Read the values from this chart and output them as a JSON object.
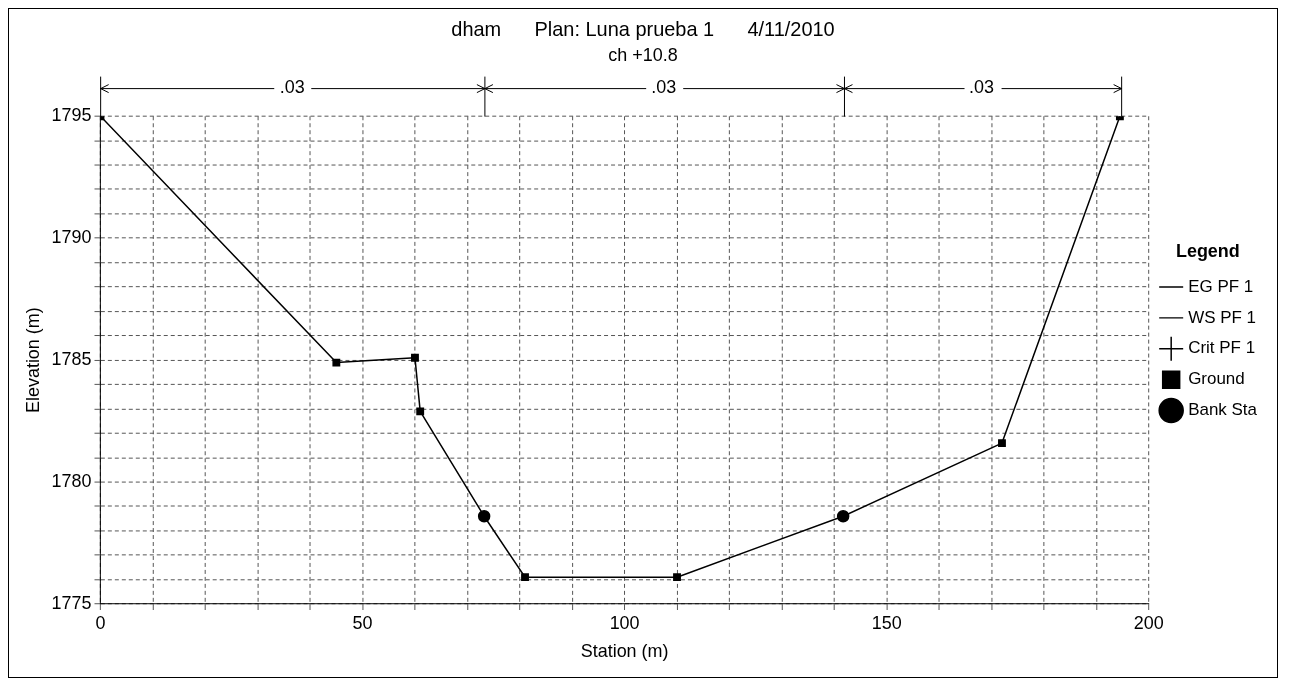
{
  "chart_data": {
    "type": "line",
    "title": "dham      Plan: Luna prueba 1      4/11/2010",
    "subtitle": "ch +10.8",
    "xlabel": "Station (m)",
    "ylabel": "Elevation (m)",
    "legend_title": "Legend",
    "legend": "right",
    "grid": true,
    "xlim": [
      0,
      200
    ],
    "xticks": [
      0,
      {
        "value": 10,
        "label": null
      },
      {
        "value": 20,
        "label": null
      },
      {
        "value": 30,
        "label": null
      },
      {
        "value": 40,
        "label": null
      },
      50,
      {
        "value": 60,
        "label": null
      },
      {
        "value": 70,
        "label": null
      },
      {
        "value": 80,
        "label": null
      },
      {
        "value": 90,
        "label": null
      },
      100,
      {
        "value": 110,
        "label": null
      },
      {
        "value": 120,
        "label": null
      },
      {
        "value": 130,
        "label": null
      },
      {
        "value": 140,
        "label": null
      },
      150,
      {
        "value": 160,
        "label": null
      },
      {
        "value": 170,
        "label": null
      },
      {
        "value": 180,
        "label": null
      },
      {
        "value": 190,
        "label": null
      },
      200
    ],
    "ylim": [
      1775,
      1795
    ],
    "yticks": [
      1775,
      {
        "value": 1776,
        "label": null
      },
      {
        "value": 1777,
        "label": null
      },
      {
        "value": 1778,
        "label": null
      },
      {
        "value": 1779,
        "label": null
      },
      1780,
      {
        "value": 1781,
        "label": null
      },
      {
        "value": 1782,
        "label": null
      },
      {
        "value": 1783,
        "label": null
      },
      {
        "value": 1784,
        "label": null
      },
      1785,
      {
        "value": 1786,
        "label": null
      },
      {
        "value": 1787,
        "label": null
      },
      {
        "value": 1788,
        "label": null
      },
      {
        "value": 1789,
        "label": null
      },
      1790,
      {
        "value": 1791,
        "label": null
      },
      {
        "value": 1792,
        "label": null
      },
      {
        "value": 1793,
        "label": null
      },
      {
        "value": 1794,
        "label": null
      },
      1795
    ],
    "annotations": [
      ".03",
      ".03",
      ".03"
    ],
    "series": [
      {
        "name": "EG PF 1",
        "type": "line",
        "color": "#000000",
        "line_style": "dashed",
        "marker": "none"
      },
      {
        "name": "WS PF 1",
        "type": "line",
        "color": "#000000",
        "line_style": "solid",
        "marker": "none"
      },
      {
        "name": "Crit PF 1",
        "type": "line",
        "color": "#000000",
        "line_style": "dotted",
        "marker": "cross"
      },
      {
        "name": "Ground",
        "type": "line",
        "color": "#000000",
        "line_style": "solid",
        "marker": "square",
        "x": [
          0,
          45,
          60,
          61,
          73.2,
          81,
          110,
          141.7,
          172,
          194.5
        ],
        "values": [
          1795,
          1784.9,
          1785.1,
          1782.9,
          1778.6,
          1776.1,
          1776.1,
          1778.6,
          1781.6,
          1795
        ]
      },
      {
        "name": "Bank Sta",
        "type": "scatter",
        "color": "#000000",
        "marker": "circle",
        "x": [
          73.2,
          141.7
        ],
        "values": [
          1778.6,
          1778.6
        ]
      }
    ]
  }
}
